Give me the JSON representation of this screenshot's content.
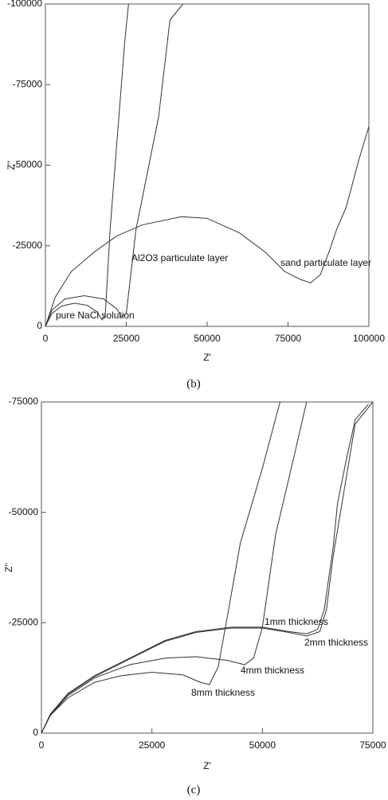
{
  "chart_data": [
    {
      "type": "line",
      "caption": "(b)",
      "x_label": "Z'",
      "y_label": "Z''",
      "color": "#333",
      "xlim": [
        0,
        100000
      ],
      "ylim": [
        0,
        -100000
      ],
      "xticks": [
        0,
        25000,
        50000,
        75000,
        100000
      ],
      "yticks": [
        0,
        -25000,
        -50000,
        -75000,
        -100000
      ],
      "series": [
        {
          "name": "pure NaCl solution",
          "x": [
            0,
            2000,
            5000,
            9000,
            13000,
            16000,
            17500,
            18500,
            20000,
            24500,
            25700
          ],
          "values": [
            0,
            -4000,
            -6300,
            -7200,
            -6500,
            -4500,
            -2000,
            -3500,
            -30000,
            -88000,
            -100000
          ]
        },
        {
          "name": "Al2O3 particulate layer",
          "x": [
            0,
            2000,
            6000,
            12000,
            18000,
            22000,
            23500,
            25000,
            28000,
            35000,
            38500,
            42500
          ],
          "values": [
            0,
            -5000,
            -8500,
            -9500,
            -8500,
            -5500,
            -3000,
            -4000,
            -30000,
            -65000,
            -95000,
            -100000
          ]
        },
        {
          "name": "sand particulate layer",
          "x": [
            0,
            3000,
            8000,
            15000,
            22000,
            30000,
            42000,
            50000,
            60000,
            68000,
            74000,
            79000,
            82000,
            85000,
            88000,
            90000,
            93000,
            97000,
            100000
          ],
          "values": [
            0,
            -9000,
            -17000,
            -23000,
            -28000,
            -31500,
            -34000,
            -33500,
            -29000,
            -23000,
            -17000,
            -14500,
            -13500,
            -16000,
            -24000,
            -30000,
            -37000,
            -52000,
            -62000
          ]
        }
      ]
    },
    {
      "type": "line",
      "caption": "(c)",
      "x_label": "Z'",
      "y_label": "Z''",
      "color": "#333",
      "xlim": [
        0,
        75000
      ],
      "ylim": [
        0,
        -75000
      ],
      "xticks": [
        0,
        25000,
        50000,
        75000
      ],
      "yticks": [
        0,
        -25000,
        -50000,
        -75000
      ],
      "series": [
        {
          "name": "1mm thickness",
          "x": [
            0,
            2000,
            6000,
            12000,
            20000,
            28000,
            35000,
            43000,
            50000,
            56000,
            60000,
            62500,
            64000,
            66000,
            67000,
            69000,
            71000,
            74000
          ],
          "values": [
            0,
            -4300,
            -9000,
            -13000,
            -17000,
            -21000,
            -23000,
            -24000,
            -24000,
            -23000,
            -22500,
            -23500,
            -28000,
            -42000,
            -52000,
            -62000,
            -71000,
            -74500
          ]
        },
        {
          "name": "2mm thickness",
          "x": [
            0,
            2000,
            6000,
            12000,
            20000,
            28000,
            35000,
            43000,
            50000,
            56000,
            60000,
            63000,
            64500,
            66000,
            68500,
            71000,
            75000
          ],
          "values": [
            0,
            -4200,
            -8800,
            -12800,
            -16800,
            -20800,
            -22800,
            -23800,
            -23800,
            -22800,
            -22000,
            -23000,
            -28000,
            -40000,
            -55000,
            -70000,
            -75000
          ]
        },
        {
          "name": "4mm thickness",
          "x": [
            0,
            2000,
            6000,
            12000,
            20000,
            28000,
            35000,
            42000,
            46000,
            48000,
            50000,
            53000,
            57000,
            60000
          ],
          "values": [
            0,
            -4000,
            -8500,
            -12500,
            -15500,
            -17000,
            -17300,
            -16500,
            -15500,
            -17000,
            -24000,
            -45000,
            -62000,
            -75000
          ]
        },
        {
          "name": "8mm thickness",
          "x": [
            0,
            2000,
            6000,
            12000,
            18000,
            25000,
            32000,
            36000,
            38000,
            40000,
            42000,
            45000,
            50000,
            54000
          ],
          "values": [
            0,
            -4000,
            -8000,
            -11500,
            -13000,
            -13800,
            -13200,
            -11500,
            -11000,
            -15000,
            -26000,
            -43000,
            -60000,
            -75000
          ]
        }
      ]
    }
  ]
}
